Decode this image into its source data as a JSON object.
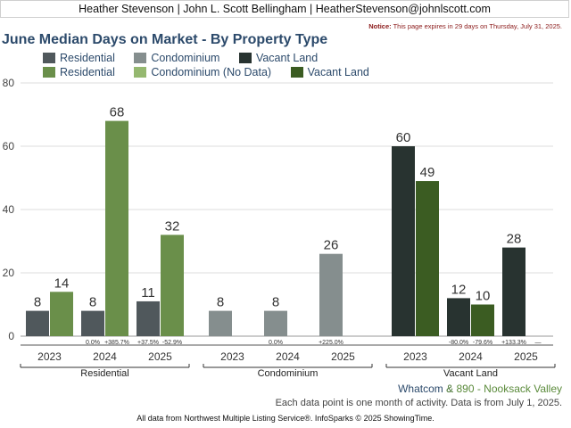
{
  "header": {
    "contact": "Heather Stevenson | John L. Scott Bellingham | HeatherStevenson@johnlscott.com",
    "notice_label": "Notice:",
    "notice_text": "This page expires in 29 days on Thursday, July 31, 2025."
  },
  "legend": [
    {
      "label": "Residential",
      "color": "#50585c"
    },
    {
      "label": "Condominium",
      "color": "#858e8e"
    },
    {
      "label": "Vacant Land",
      "color": "#283330"
    },
    {
      "label": "Residential",
      "color": "#6a8f4a"
    },
    {
      "label": "Condominium (No Data)",
      "color": "#95b870"
    },
    {
      "label": "Vacant Land",
      "color": "#3b5c22"
    }
  ],
  "footer": {
    "area": "Whatcom",
    "amp": "&",
    "subarea": "890 - Nooksack Valley",
    "note": "Each data point is one month of activity. Data is from July 1, 2025.",
    "source": "All data from Northwest Multiple Listing Service®. InfoSparks © 2025 ShowingTime."
  },
  "chart_data": {
    "type": "bar",
    "title": "June Median Days on Market - By Property Type",
    "ylim": [
      0,
      80
    ],
    "yticks": [
      0,
      20,
      40,
      60,
      80
    ],
    "grid": true,
    "groups": [
      {
        "name": "Residential",
        "years": [
          {
            "year": "2023",
            "county": 8,
            "sub": 14,
            "pct_county": "",
            "pct_sub": ""
          },
          {
            "year": "2024",
            "county": 8,
            "sub": 68,
            "pct_county": "0.0%",
            "pct_sub": "+385.7%"
          },
          {
            "year": "2025",
            "county": 11,
            "sub": 32,
            "pct_county": "+37.5%",
            "pct_sub": "-52.9%"
          }
        ]
      },
      {
        "name": "Condominium",
        "years": [
          {
            "year": "2023",
            "county": 8,
            "sub": null,
            "pct_county": "",
            "pct_sub": ""
          },
          {
            "year": "2024",
            "county": 8,
            "sub": null,
            "pct_county": "0.0%",
            "pct_sub": ""
          },
          {
            "year": "2025",
            "county": 26,
            "sub": null,
            "pct_county": "+225.0%",
            "pct_sub": ""
          }
        ]
      },
      {
        "name": "Vacant Land",
        "years": [
          {
            "year": "2023",
            "county": 60,
            "sub": 49,
            "pct_county": "",
            "pct_sub": ""
          },
          {
            "year": "2024",
            "county": 12,
            "sub": 10,
            "pct_county": "-80.0%",
            "pct_sub": "-79.6%"
          },
          {
            "year": "2025",
            "county": 28,
            "sub": null,
            "pct_county": "+133.3%",
            "pct_sub": "—"
          }
        ]
      }
    ]
  }
}
